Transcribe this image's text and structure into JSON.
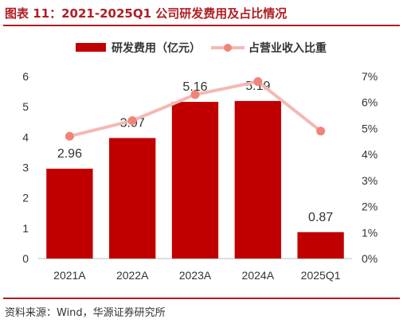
{
  "figure": {
    "title": "图表 11：2021-2025Q1 公司研发费用及占比情况",
    "source": "资料来源：Wind，华源证券研究所"
  },
  "colors": {
    "bar": "#c00000",
    "line": "#f4b9b4",
    "marker": "#f08478",
    "accent": "#b01e23"
  },
  "chart_data": {
    "type": "bar",
    "categories": [
      "2021A",
      "2022A",
      "2023A",
      "2024A",
      "2025Q1"
    ],
    "series": [
      {
        "name": "研发费用（亿元）",
        "type": "bar",
        "axis": "left",
        "values": [
          2.96,
          3.97,
          5.16,
          5.19,
          0.87
        ],
        "labels": [
          "2.96",
          "3.97",
          "5.16",
          "5.19",
          "0.87"
        ]
      },
      {
        "name": "占营业收入比重",
        "type": "line",
        "axis": "right",
        "values": [
          4.7,
          5.3,
          6.3,
          6.8,
          4.9
        ]
      }
    ],
    "ylim_left": [
      0,
      6
    ],
    "yticks_left": [
      "0",
      "1",
      "2",
      "3",
      "4",
      "5",
      "6"
    ],
    "ylim_right": [
      0,
      7
    ],
    "yticks_right": [
      "0%",
      "1%",
      "2%",
      "3%",
      "4%",
      "5%",
      "6%",
      "7%"
    ],
    "legend_position": "top",
    "grid": false
  }
}
